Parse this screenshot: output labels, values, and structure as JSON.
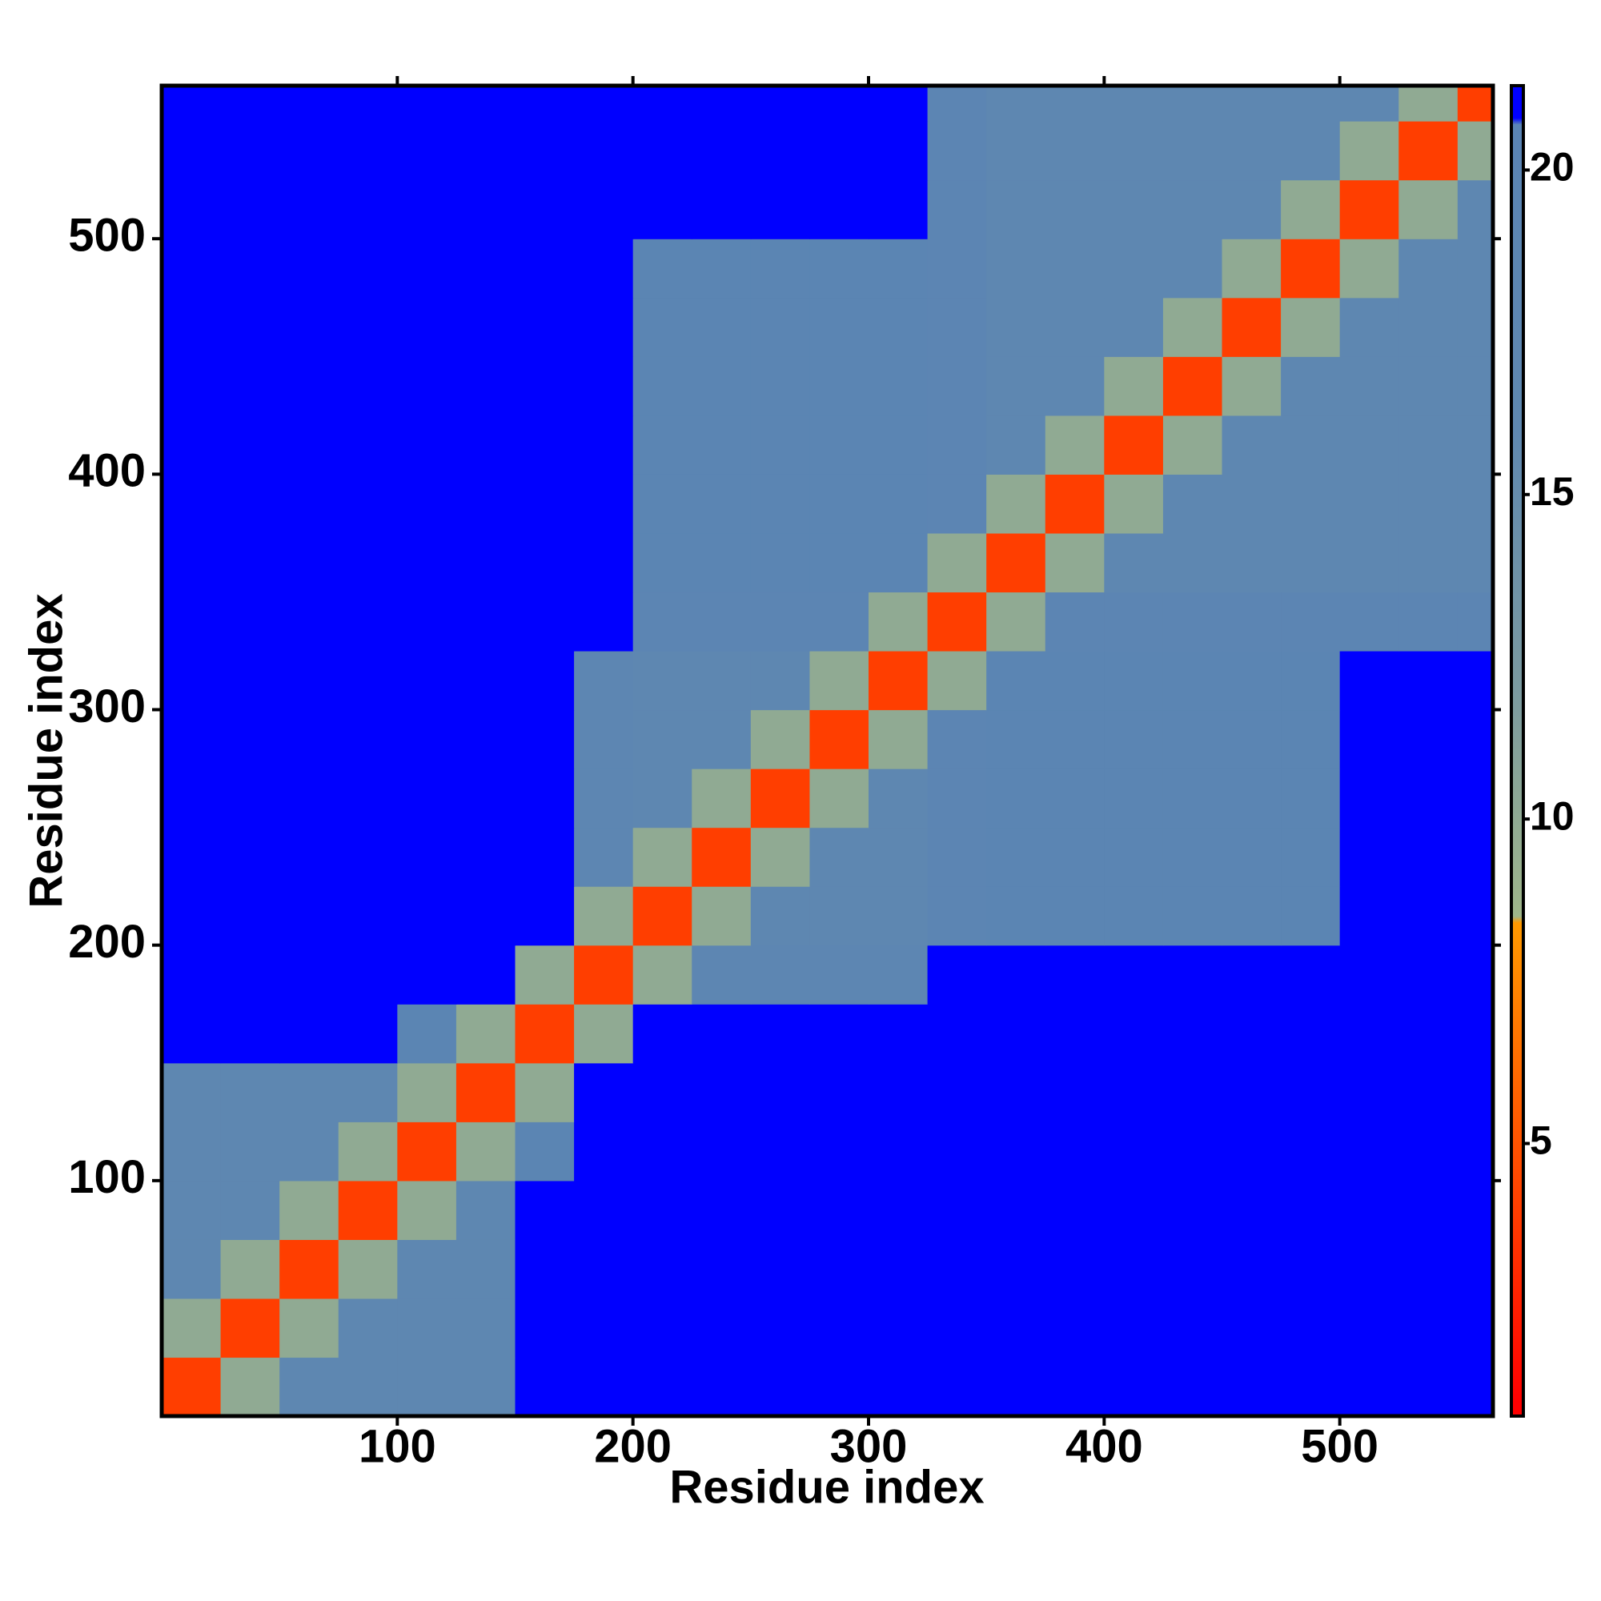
{
  "chart_data": {
    "type": "heatmap",
    "x_label": "Residue index",
    "y_label": "Residue index",
    "xlim": [
      0,
      565
    ],
    "ylim": [
      0,
      565
    ],
    "xticks": [
      100,
      200,
      300,
      400,
      500
    ],
    "yticks": [
      100,
      200,
      300,
      400,
      500
    ],
    "x_bins": [
      0,
      25,
      50,
      75,
      100,
      125,
      150,
      175,
      200,
      225,
      250,
      275,
      300,
      325,
      350,
      375,
      400,
      425,
      450,
      475,
      500,
      525,
      550,
      565
    ],
    "y_bins": [
      0,
      25,
      50,
      75,
      100,
      125,
      150,
      175,
      200,
      225,
      250,
      275,
      300,
      325,
      350,
      375,
      400,
      425,
      450,
      475,
      500,
      525,
      550,
      565
    ],
    "z": [
      [
        4,
        10,
        17,
        17,
        17,
        17,
        22,
        22,
        21,
        21,
        21,
        21,
        21,
        22,
        22,
        22,
        22,
        22,
        22,
        22,
        22,
        22,
        22
      ],
      [
        10,
        4,
        10,
        17,
        17,
        17,
        22,
        22,
        21,
        21,
        21,
        21,
        21,
        22,
        22,
        22,
        22,
        22,
        22,
        22,
        22,
        22,
        22
      ],
      [
        17,
        10,
        4,
        10,
        17,
        17,
        22,
        22,
        21,
        21,
        21,
        21,
        21,
        22,
        22,
        22,
        22,
        22,
        22,
        22,
        22,
        22,
        22
      ],
      [
        17,
        17,
        10,
        4,
        10,
        17,
        22,
        22,
        21,
        21,
        21,
        21,
        21,
        22,
        22,
        22,
        22,
        22,
        22,
        22,
        22,
        22,
        22
      ],
      [
        17,
        17,
        17,
        10,
        4,
        10,
        20,
        22,
        22,
        22,
        22,
        22,
        22,
        22,
        22,
        22,
        22,
        22,
        22,
        22,
        22,
        22,
        22
      ],
      [
        17,
        17,
        17,
        17,
        10,
        4,
        10,
        22,
        22,
        22,
        22,
        22,
        22,
        22,
        22,
        22,
        22,
        22,
        22,
        22,
        22,
        22,
        22
      ],
      [
        22,
        22,
        22,
        22,
        20,
        10,
        4,
        10,
        22,
        22,
        22,
        22,
        22,
        22,
        22,
        22,
        22,
        22,
        22,
        22,
        22,
        22,
        22
      ],
      [
        22,
        22,
        22,
        22,
        22,
        22,
        10,
        4,
        10,
        18,
        18,
        18,
        18,
        22,
        22,
        22,
        22,
        22,
        22,
        22,
        22,
        22,
        22
      ],
      [
        21,
        21,
        21,
        21,
        22,
        22,
        22,
        10,
        4,
        10,
        17,
        17,
        17,
        19,
        20,
        20,
        20,
        20,
        20,
        20,
        21,
        21,
        21
      ],
      [
        21,
        21,
        21,
        21,
        22,
        22,
        22,
        18,
        10,
        4,
        10,
        17,
        17,
        19,
        20,
        20,
        20,
        20,
        20,
        20,
        21,
        21,
        21
      ],
      [
        21,
        21,
        21,
        21,
        22,
        22,
        22,
        18,
        17,
        10,
        4,
        10,
        17,
        19,
        20,
        20,
        20,
        20,
        20,
        20,
        21,
        21,
        21
      ],
      [
        21,
        21,
        21,
        21,
        22,
        22,
        22,
        18,
        17,
        17,
        10,
        4,
        10,
        19,
        20,
        20,
        20,
        20,
        20,
        20,
        21,
        21,
        21
      ],
      [
        21,
        21,
        21,
        21,
        22,
        22,
        22,
        18,
        17,
        17,
        17,
        10,
        4,
        10,
        20,
        20,
        20,
        20,
        20,
        20,
        21,
        21,
        21
      ],
      [
        22,
        22,
        22,
        22,
        22,
        22,
        22,
        22,
        19,
        19,
        19,
        19,
        10,
        4,
        10,
        19,
        19,
        19,
        19,
        19,
        19,
        19,
        19
      ],
      [
        22,
        22,
        22,
        22,
        22,
        22,
        22,
        22,
        20,
        20,
        20,
        20,
        20,
        10,
        4,
        10,
        17,
        17,
        17,
        17,
        17,
        17,
        17
      ],
      [
        22,
        22,
        22,
        22,
        22,
        22,
        22,
        22,
        20,
        20,
        20,
        20,
        20,
        19,
        10,
        4,
        10,
        17,
        17,
        17,
        17,
        17,
        17
      ],
      [
        22,
        22,
        22,
        22,
        22,
        22,
        22,
        22,
        20,
        20,
        20,
        20,
        20,
        19,
        17,
        10,
        4,
        10,
        17,
        17,
        17,
        17,
        17
      ],
      [
        22,
        22,
        22,
        22,
        22,
        22,
        22,
        22,
        20,
        20,
        20,
        20,
        20,
        19,
        17,
        17,
        10,
        4,
        10,
        17,
        17,
        17,
        17
      ],
      [
        22,
        22,
        22,
        22,
        22,
        22,
        22,
        22,
        20,
        20,
        20,
        20,
        20,
        19,
        17,
        17,
        17,
        10,
        4,
        10,
        17,
        17,
        17
      ],
      [
        22,
        22,
        22,
        22,
        22,
        22,
        22,
        22,
        20,
        20,
        20,
        20,
        20,
        19,
        17,
        17,
        17,
        17,
        10,
        4,
        10,
        17,
        17
      ],
      [
        22,
        22,
        22,
        22,
        22,
        22,
        22,
        22,
        21,
        21,
        21,
        21,
        21,
        19,
        17,
        17,
        17,
        17,
        17,
        10,
        4,
        10,
        17
      ],
      [
        22,
        22,
        22,
        22,
        22,
        22,
        22,
        22,
        21,
        21,
        21,
        21,
        21,
        19,
        17,
        17,
        17,
        17,
        17,
        17,
        10,
        4,
        10
      ],
      [
        22,
        22,
        22,
        22,
        22,
        22,
        22,
        22,
        21,
        21,
        21,
        21,
        21,
        19,
        17,
        17,
        17,
        17,
        17,
        17,
        17,
        10,
        4
      ]
    ],
    "clim": [
      0.8,
      21.3
    ],
    "cticks": [
      5,
      10,
      15,
      20
    ],
    "colorscale": [
      [
        1,
        "#ff0000"
      ],
      [
        8.4,
        "#ff9900"
      ],
      [
        8.5,
        "#9fb68a"
      ],
      [
        12,
        "#7b9aa0"
      ],
      [
        16,
        "#5f88b0"
      ],
      [
        20.7,
        "#5a84b4"
      ],
      [
        20.8,
        "#0000ff"
      ],
      [
        22,
        "#0000ff"
      ]
    ]
  }
}
